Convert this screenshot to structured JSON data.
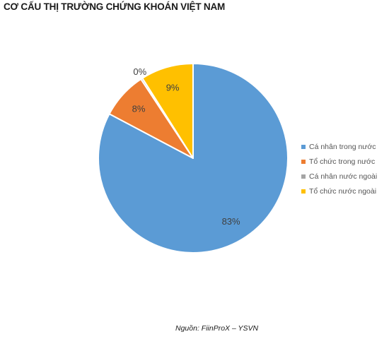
{
  "chart_data": {
    "type": "pie",
    "title": "CƠ CẤU THỊ TRƯỜNG CHỨNG KHOÁN VIỆT NAM",
    "categories": [
      "Cá nhân trong nước",
      "Tổ chức trong nước",
      "Cá nhân nước ngoài",
      "Tổ chức nước ngoài"
    ],
    "values": [
      83,
      8,
      0.3,
      9
    ],
    "data_labels": [
      "83%",
      "8%",
      "0%",
      "9%"
    ],
    "colors": [
      "#5b9bd5",
      "#ed7d31",
      "#a5a5a5",
      "#ffc000"
    ],
    "legend_position": "right"
  },
  "source": "Nguồn: FiinProX – YSVN"
}
